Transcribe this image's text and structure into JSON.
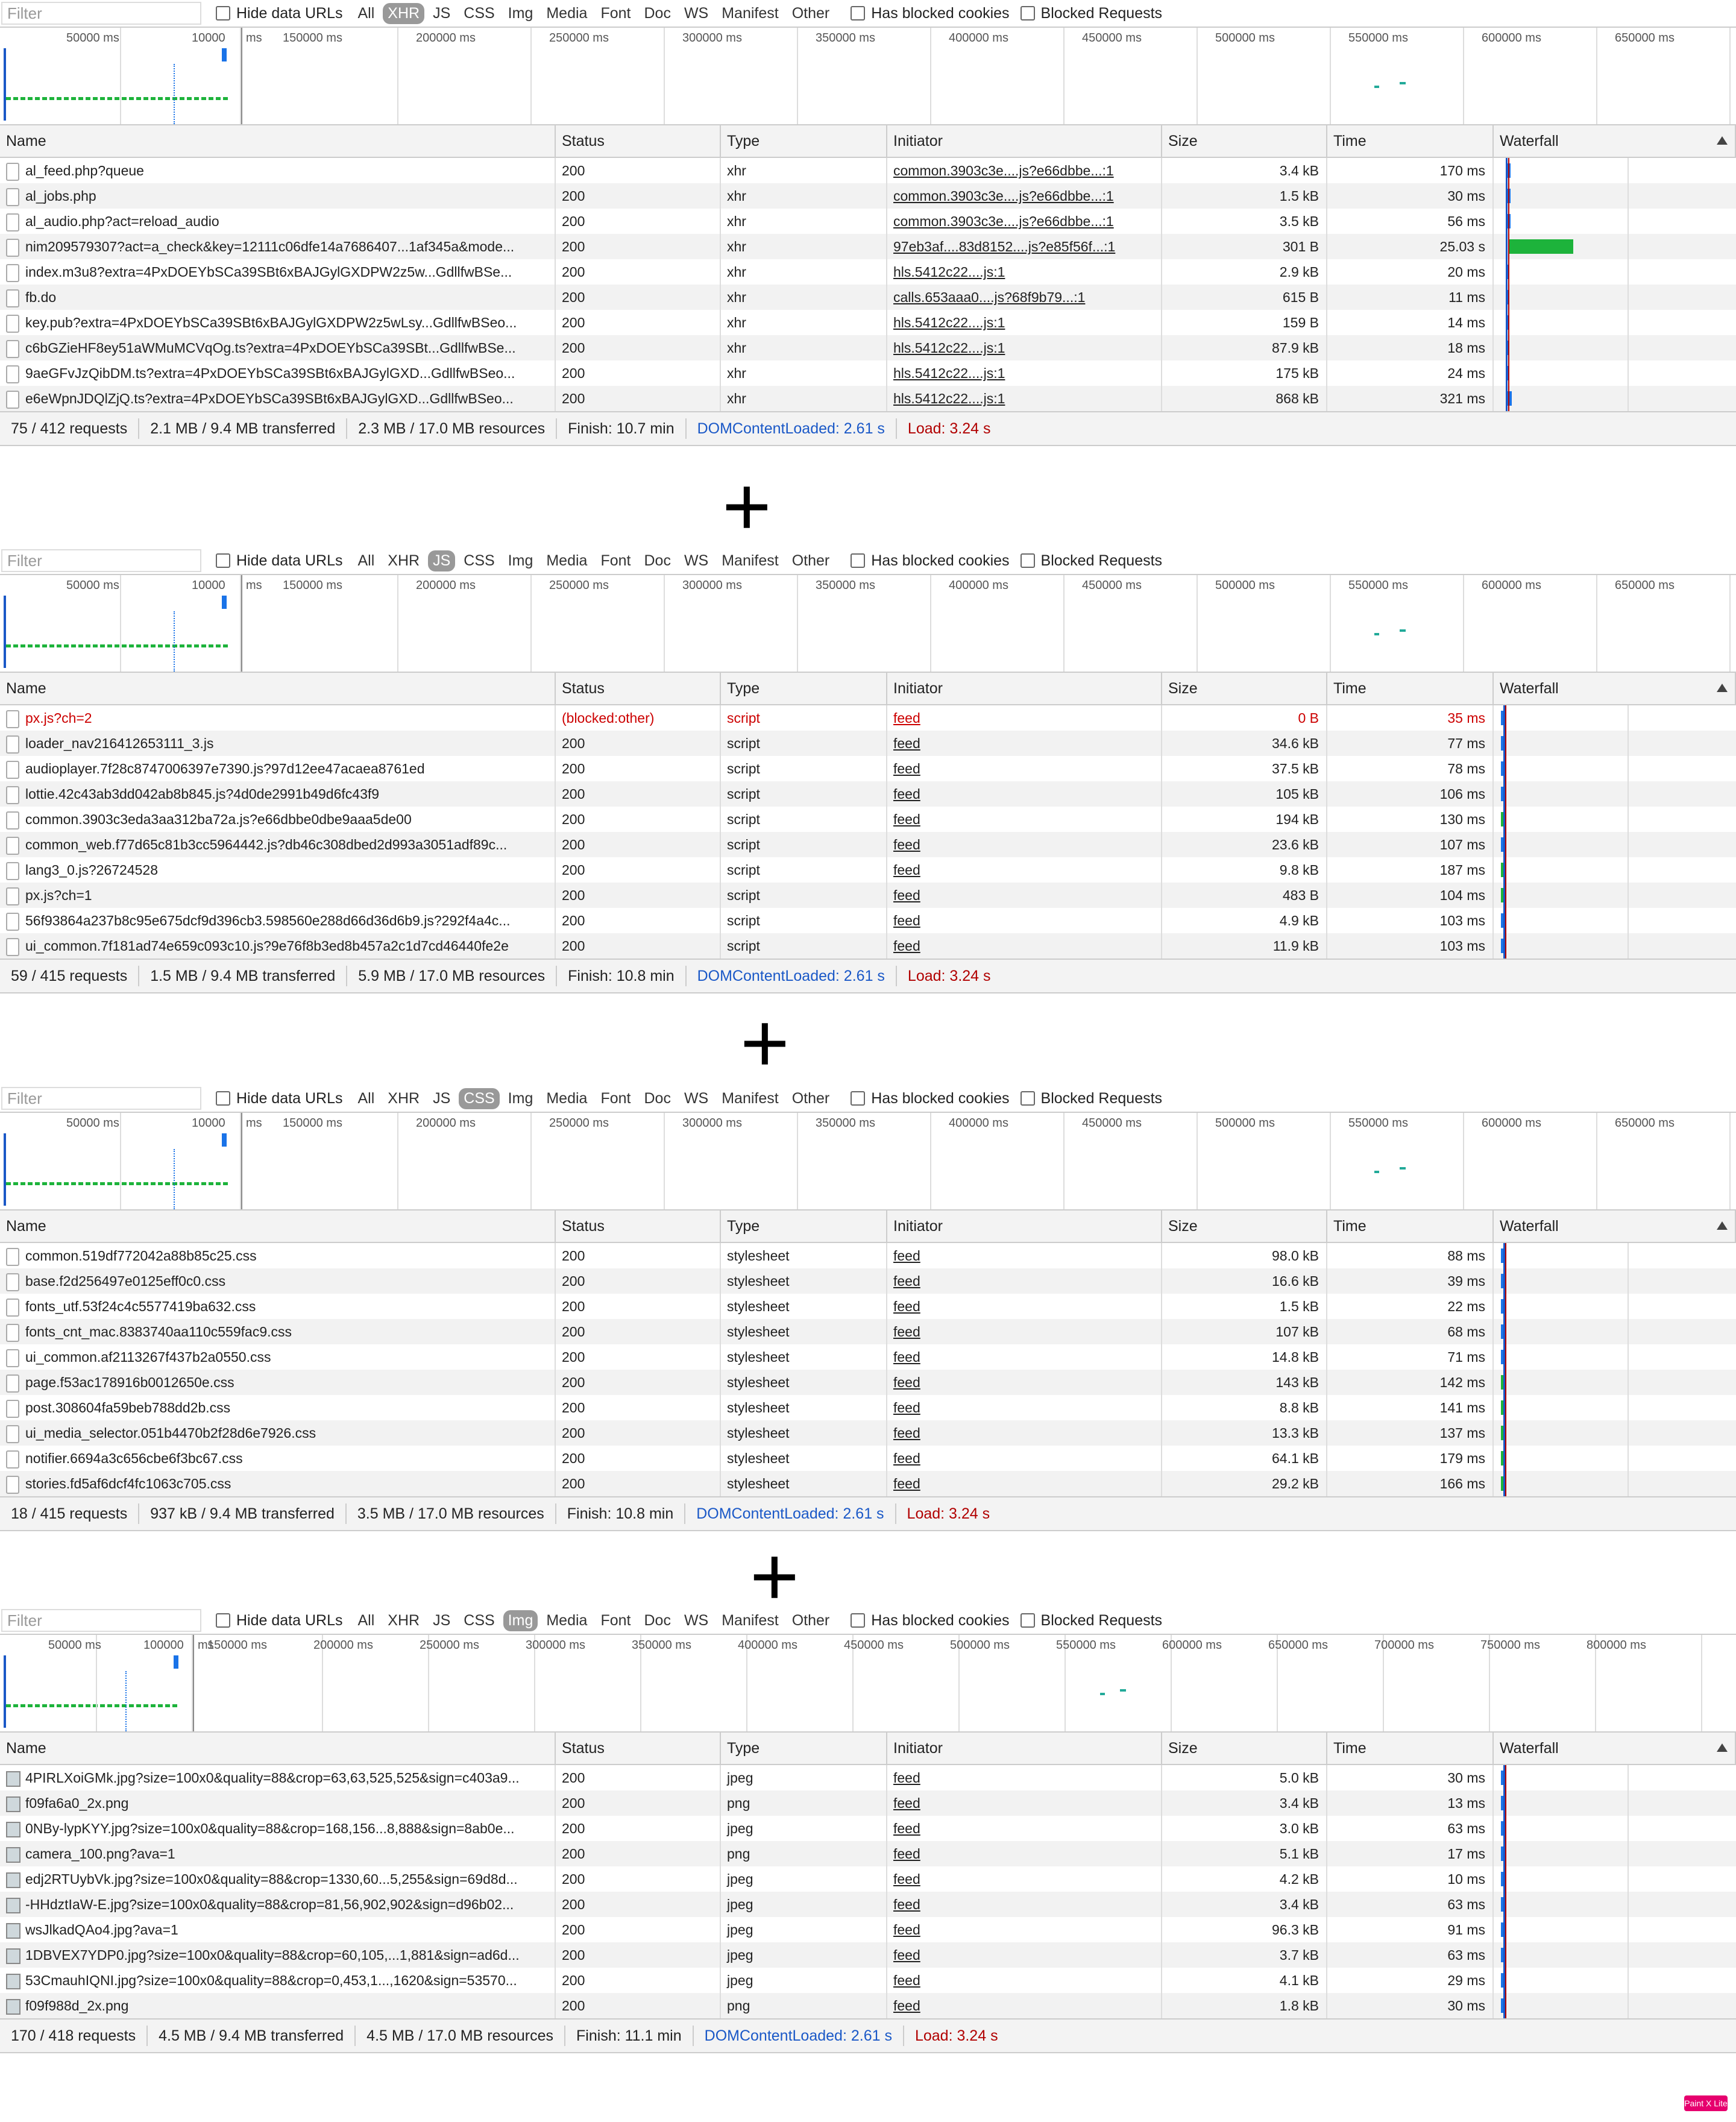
{
  "filter": {
    "placeholder": "Filter",
    "hide_data_urls": "Hide data URLs",
    "types": [
      "All",
      "XHR",
      "JS",
      "CSS",
      "Img",
      "Media",
      "Font",
      "Doc",
      "WS",
      "Manifest",
      "Other"
    ],
    "has_blocked_cookies": "Has blocked cookies",
    "blocked_requests": "Blocked Requests"
  },
  "columns": {
    "name": "Name",
    "status": "Status",
    "type": "Type",
    "initiator": "Initiator",
    "size": "Size",
    "time": "Time",
    "waterfall": "Waterfall"
  },
  "plus_sign": "+",
  "badge": "Paint X Lite",
  "colors": {
    "dcl": "#1a58c7",
    "load": "#b10000",
    "waterfall_blue": "#1a73e8",
    "waterfall_green": "#1db33b"
  },
  "panels": [
    {
      "active_type": "XHR",
      "overview_labels": [
        "50000 ms",
        "10000",
        "ms",
        "150000 ms",
        "200000 ms",
        "250000 ms",
        "300000 ms",
        "350000 ms",
        "400000 ms",
        "450000 ms",
        "500000 ms",
        "550000 ms",
        "600000 ms",
        "650000 ms"
      ],
      "rows": [
        {
          "name": "al_feed.php?queue",
          "status": "200",
          "type": "xhr",
          "initiator": "common.3903c3e....js?e66dbbe...:1",
          "size": "3.4 kB",
          "time": "170 ms"
        },
        {
          "name": "al_jobs.php",
          "status": "200",
          "type": "xhr",
          "initiator": "common.3903c3e....js?e66dbbe...:1",
          "size": "1.5 kB",
          "time": "30 ms"
        },
        {
          "name": "al_audio.php?act=reload_audio",
          "status": "200",
          "type": "xhr",
          "initiator": "common.3903c3e....js?e66dbbe...:1",
          "size": "3.5 kB",
          "time": "56 ms"
        },
        {
          "name": "nim209579307?act=a_check&key=12111c06dfe14a7686407...1af345a&mode...",
          "status": "200",
          "type": "xhr",
          "initiator": "97eb3af....83d8152....js?e85f56f...:1",
          "size": "301 B",
          "time": "25.03 s"
        },
        {
          "name": "index.m3u8?extra=4PxDOEYbSCa39SBt6xBAJGylGXDPW2z5w...GdllfwBSe...",
          "status": "200",
          "type": "xhr",
          "initiator": "hls.5412c22....js:1",
          "size": "2.9 kB",
          "time": "20 ms"
        },
        {
          "name": "fb.do",
          "status": "200",
          "type": "xhr",
          "initiator": "calls.653aaa0....js?68f9b79...:1",
          "size": "615 B",
          "time": "11 ms"
        },
        {
          "name": "key.pub?extra=4PxDOEYbSCa39SBt6xBAJGylGXDPW2z5wLsy...GdllfwBSeo...",
          "status": "200",
          "type": "xhr",
          "initiator": "hls.5412c22....js:1",
          "size": "159 B",
          "time": "14 ms"
        },
        {
          "name": "c6bGZieHF8ey51aWMuMCVqOg.ts?extra=4PxDOEYbSCa39SBt...GdllfwBSe...",
          "status": "200",
          "type": "xhr",
          "initiator": "hls.5412c22....js:1",
          "size": "87.9 kB",
          "time": "18 ms"
        },
        {
          "name": "9aeGFvJzQibDM.ts?extra=4PxDOEYbSCa39SBt6xBAJGylGXD...GdllfwBSeo...",
          "status": "200",
          "type": "xhr",
          "initiator": "hls.5412c22....js:1",
          "size": "175 kB",
          "time": "24 ms"
        },
        {
          "name": "e6eWpnJDQlZjQ.ts?extra=4PxDOEYbSCa39SBt6xBAJGylGXD...GdllfwBSeo...",
          "status": "200",
          "type": "xhr",
          "initiator": "hls.5412c22....js:1",
          "size": "868 kB",
          "time": "321 ms"
        }
      ],
      "summary": {
        "requests": "75 / 412 requests",
        "transferred": "2.1 MB / 9.4 MB transferred",
        "resources": "2.3 MB / 17.0 MB resources",
        "finish": "Finish: 10.7 min",
        "dcl": "DOMContentLoaded: 2.61 s",
        "load": "Load: 3.24 s"
      }
    },
    {
      "active_type": "JS",
      "overview_labels": [
        "50000 ms",
        "10000",
        "ms",
        "150000 ms",
        "200000 ms",
        "250000 ms",
        "300000 ms",
        "350000 ms",
        "400000 ms",
        "450000 ms",
        "500000 ms",
        "550000 ms",
        "600000 ms",
        "650000 ms"
      ],
      "rows": [
        {
          "name": "px.js?ch=2",
          "status": "(blocked:other)",
          "type": "script",
          "initiator": "feed",
          "size": "0 B",
          "time": "35 ms",
          "blocked": true
        },
        {
          "name": "loader_nav216412653111_3.js",
          "status": "200",
          "type": "script",
          "initiator": "feed",
          "size": "34.6 kB",
          "time": "77 ms"
        },
        {
          "name": "audioplayer.7f28c8747006397e7390.js?97d12ee47acaea8761ed",
          "status": "200",
          "type": "script",
          "initiator": "feed",
          "size": "37.5 kB",
          "time": "78 ms"
        },
        {
          "name": "lottie.42c43ab3dd042ab8b845.js?4d0de2991b49d6fc43f9",
          "status": "200",
          "type": "script",
          "initiator": "feed",
          "size": "105 kB",
          "time": "106 ms"
        },
        {
          "name": "common.3903c3eda3aa312ba72a.js?e66dbbe0dbe9aaa5de00",
          "status": "200",
          "type": "script",
          "initiator": "feed",
          "size": "194 kB",
          "time": "130 ms"
        },
        {
          "name": "common_web.f77d65c81b3cc5964442.js?db46c308dbed2d993a3051adf89c...",
          "status": "200",
          "type": "script",
          "initiator": "feed",
          "size": "23.6 kB",
          "time": "107 ms"
        },
        {
          "name": "lang3_0.js?26724528",
          "status": "200",
          "type": "script",
          "initiator": "feed",
          "size": "9.8 kB",
          "time": "187 ms"
        },
        {
          "name": "px.js?ch=1",
          "status": "200",
          "type": "script",
          "initiator": "feed",
          "size": "483 B",
          "time": "104 ms"
        },
        {
          "name": "56f93864a237b8c95e675dcf9d396cb3.598560e288d66d36d6b9.js?292f4a4c...",
          "status": "200",
          "type": "script",
          "initiator": "feed",
          "size": "4.9 kB",
          "time": "103 ms"
        },
        {
          "name": "ui_common.7f181ad74e659c093c10.js?9e76f8b3ed8b457a2c1d7cd46440fe2e",
          "status": "200",
          "type": "script",
          "initiator": "feed",
          "size": "11.9 kB",
          "time": "103 ms"
        }
      ],
      "summary": {
        "requests": "59 / 415 requests",
        "transferred": "1.5 MB / 9.4 MB transferred",
        "resources": "5.9 MB / 17.0 MB resources",
        "finish": "Finish: 10.8 min",
        "dcl": "DOMContentLoaded: 2.61 s",
        "load": "Load: 3.24 s"
      }
    },
    {
      "active_type": "CSS",
      "overview_labels": [
        "50000 ms",
        "10000",
        "ms",
        "150000 ms",
        "200000 ms",
        "250000 ms",
        "300000 ms",
        "350000 ms",
        "400000 ms",
        "450000 ms",
        "500000 ms",
        "550000 ms",
        "600000 ms",
        "650000 ms"
      ],
      "rows": [
        {
          "name": "common.519df772042a88b85c25.css",
          "status": "200",
          "type": "stylesheet",
          "initiator": "feed",
          "size": "98.0 kB",
          "time": "88 ms"
        },
        {
          "name": "base.f2d256497e0125eff0c0.css",
          "status": "200",
          "type": "stylesheet",
          "initiator": "feed",
          "size": "16.6 kB",
          "time": "39 ms"
        },
        {
          "name": "fonts_utf.53f24c4c5577419ba632.css",
          "status": "200",
          "type": "stylesheet",
          "initiator": "feed",
          "size": "1.5 kB",
          "time": "22 ms"
        },
        {
          "name": "fonts_cnt_mac.8383740aa110c559fac9.css",
          "status": "200",
          "type": "stylesheet",
          "initiator": "feed",
          "size": "107 kB",
          "time": "68 ms"
        },
        {
          "name": "ui_common.af2113267f437b2a0550.css",
          "status": "200",
          "type": "stylesheet",
          "initiator": "feed",
          "size": "14.8 kB",
          "time": "71 ms"
        },
        {
          "name": "page.f53ac178916b0012650e.css",
          "status": "200",
          "type": "stylesheet",
          "initiator": "feed",
          "size": "143 kB",
          "time": "142 ms"
        },
        {
          "name": "post.308604fa59beb788dd2b.css",
          "status": "200",
          "type": "stylesheet",
          "initiator": "feed",
          "size": "8.8 kB",
          "time": "141 ms"
        },
        {
          "name": "ui_media_selector.051b4470b2f28d6e7926.css",
          "status": "200",
          "type": "stylesheet",
          "initiator": "feed",
          "size": "13.3 kB",
          "time": "137 ms"
        },
        {
          "name": "notifier.6694a3c656cbe6f3bc67.css",
          "status": "200",
          "type": "stylesheet",
          "initiator": "feed",
          "size": "64.1 kB",
          "time": "179 ms"
        },
        {
          "name": "stories.fd5af6dcf4fc1063c705.css",
          "status": "200",
          "type": "stylesheet",
          "initiator": "feed",
          "size": "29.2 kB",
          "time": "166 ms"
        }
      ],
      "summary": {
        "requests": "18 / 415 requests",
        "transferred": "937 kB / 9.4 MB transferred",
        "resources": "3.5 MB / 17.0 MB resources",
        "finish": "Finish: 10.8 min",
        "dcl": "DOMContentLoaded: 2.61 s",
        "load": "Load: 3.24 s"
      }
    },
    {
      "active_type": "Img",
      "overview_labels": [
        "50000 ms",
        "100000",
        "ms",
        "150000 ms",
        "200000 ms",
        "250000 ms",
        "300000 ms",
        "350000 ms",
        "400000 ms",
        "450000 ms",
        "500000 ms",
        "550000 ms",
        "600000 ms",
        "650000 ms",
        "700000 ms",
        "750000 ms",
        "800000 ms"
      ],
      "rows": [
        {
          "name": "4PIRLXoiGMk.jpg?size=100x0&quality=88&crop=63,63,525,525&sign=c403a9...",
          "status": "200",
          "type": "jpeg",
          "initiator": "feed",
          "size": "5.0 kB",
          "time": "30 ms"
        },
        {
          "name": "f09fa6a0_2x.png",
          "status": "200",
          "type": "png",
          "initiator": "feed",
          "size": "3.4 kB",
          "time": "13 ms"
        },
        {
          "name": "0NBy-lypKYY.jpg?size=100x0&quality=88&crop=168,156...8,888&sign=8ab0e...",
          "status": "200",
          "type": "jpeg",
          "initiator": "feed",
          "size": "3.0 kB",
          "time": "63 ms"
        },
        {
          "name": "camera_100.png?ava=1",
          "status": "200",
          "type": "png",
          "initiator": "feed",
          "size": "5.1 kB",
          "time": "17 ms"
        },
        {
          "name": "edj2RTUybVk.jpg?size=100x0&quality=88&crop=1330,60...5,255&sign=69d8d...",
          "status": "200",
          "type": "jpeg",
          "initiator": "feed",
          "size": "4.2 kB",
          "time": "10 ms"
        },
        {
          "name": "-HHdztIaW-E.jpg?size=100x0&quality=88&crop=81,56,902,902&sign=d96b02...",
          "status": "200",
          "type": "jpeg",
          "initiator": "feed",
          "size": "3.4 kB",
          "time": "63 ms"
        },
        {
          "name": "wsJlkadQAo4.jpg?ava=1",
          "status": "200",
          "type": "jpeg",
          "initiator": "feed",
          "size": "96.3 kB",
          "time": "91 ms"
        },
        {
          "name": "1DBVEX7YDP0.jpg?size=100x0&quality=88&crop=60,105,...1,881&sign=ad6d...",
          "status": "200",
          "type": "jpeg",
          "initiator": "feed",
          "size": "3.7 kB",
          "time": "63 ms"
        },
        {
          "name": "53CmauhIQNI.jpg?size=100x0&quality=88&crop=0,453,1...,1620&sign=53570...",
          "status": "200",
          "type": "jpeg",
          "initiator": "feed",
          "size": "4.1 kB",
          "time": "29 ms"
        },
        {
          "name": "f09f988d_2x.png",
          "status": "200",
          "type": "png",
          "initiator": "feed",
          "size": "1.8 kB",
          "time": "30 ms"
        }
      ],
      "summary": {
        "requests": "170 / 418 requests",
        "transferred": "4.5 MB / 9.4 MB transferred",
        "resources": "4.5 MB / 17.0 MB resources",
        "finish": "Finish: 11.1 min",
        "dcl": "DOMContentLoaded: 2.61 s",
        "load": "Load: 3.24 s"
      }
    }
  ]
}
